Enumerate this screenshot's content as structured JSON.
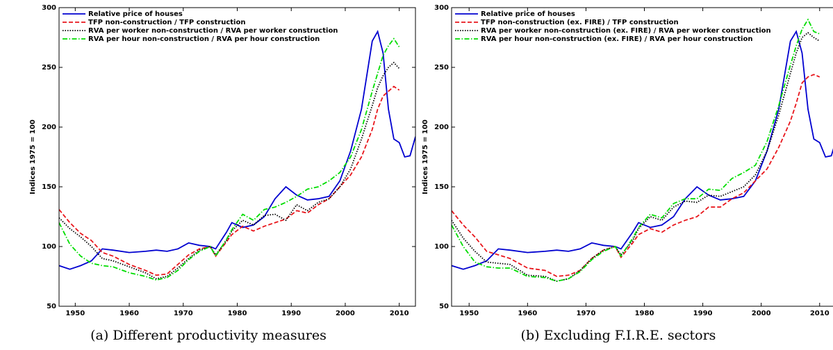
{
  "chart_data": [
    {
      "type": "line",
      "caption": "(a) Different productivity measures",
      "ylabel": "Indices 1975 = 100",
      "x": [
        1947,
        1949,
        1951,
        1953,
        1955,
        1957,
        1960,
        1963,
        1965,
        1967,
        1969,
        1971,
        1973,
        1975,
        1976,
        1978,
        1979,
        1981,
        1983,
        1985,
        1987,
        1989,
        1991,
        1993,
        1995,
        1997,
        1999,
        2001,
        2003,
        2005,
        2006,
        2007,
        2008,
        2009,
        2010,
        2011,
        2012,
        2013
      ],
      "xlim": [
        1947,
        2013
      ],
      "xticks": [
        1950,
        1960,
        1970,
        1980,
        1990,
        2000,
        2010
      ],
      "ylim": [
        50,
        300
      ],
      "yticks": [
        50,
        100,
        150,
        200,
        250,
        300
      ],
      "legend": "upper left",
      "series": [
        {
          "name": "Relative price of houses",
          "color": "#0000d0",
          "style": "solid",
          "values": [
            84,
            81,
            84,
            88,
            98,
            97,
            95,
            96,
            97,
            96,
            98,
            103,
            101,
            100,
            98,
            112,
            120,
            116,
            118,
            125,
            140,
            150,
            143,
            139,
            140,
            142,
            155,
            180,
            215,
            272,
            280,
            262,
            215,
            190,
            187,
            175,
            176,
            192
          ]
        },
        {
          "name": "TFP non-construction / TFP construction",
          "color": "#e8151b",
          "style": "dashed",
          "values": [
            131,
            120,
            111,
            105,
            95,
            92,
            85,
            80,
            76,
            77,
            85,
            93,
            98,
            100,
            92,
            104,
            110,
            117,
            113,
            117,
            120,
            123,
            130,
            128,
            135,
            140,
            150,
            160,
            175,
            198,
            215,
            226,
            230,
            234,
            231,
            null,
            null,
            null
          ]
        },
        {
          "name": "RVA per worker non-construction / RVA per worker construction",
          "color": "#000000",
          "style": "dotted",
          "values": [
            124,
            115,
            108,
            100,
            90,
            88,
            83,
            78,
            73,
            75,
            82,
            90,
            97,
            100,
            93,
            105,
            113,
            122,
            118,
            126,
            127,
            122,
            135,
            130,
            137,
            140,
            150,
            165,
            190,
            218,
            233,
            243,
            250,
            254,
            249,
            null,
            null,
            null
          ]
        },
        {
          "name": "RVA per hour non-construction / RVA per hour construction",
          "color": "#00dd00",
          "style": "dashdot",
          "values": [
            120,
            102,
            92,
            86,
            84,
            83,
            78,
            75,
            72,
            74,
            80,
            89,
            96,
            100,
            92,
            106,
            114,
            127,
            122,
            131,
            133,
            137,
            142,
            148,
            150,
            155,
            162,
            175,
            198,
            230,
            245,
            260,
            268,
            274,
            267,
            null,
            null,
            null
          ]
        }
      ]
    },
    {
      "type": "line",
      "caption": "(b) Excluding F.I.R.E. sectors",
      "ylabel": "Indices 1975 = 100",
      "x": [
        1947,
        1949,
        1951,
        1953,
        1955,
        1957,
        1960,
        1963,
        1965,
        1967,
        1969,
        1971,
        1973,
        1975,
        1976,
        1978,
        1979,
        1981,
        1983,
        1985,
        1987,
        1989,
        1991,
        1993,
        1995,
        1997,
        1999,
        2001,
        2003,
        2005,
        2006,
        2007,
        2008,
        2009,
        2010,
        2011,
        2012,
        2013
      ],
      "xlim": [
        1947,
        2013
      ],
      "xticks": [
        1950,
        1960,
        1970,
        1980,
        1990,
        2000,
        2010
      ],
      "ylim": [
        50,
        300
      ],
      "yticks": [
        50,
        100,
        150,
        200,
        250,
        300
      ],
      "legend": "upper left",
      "series": [
        {
          "name": "Relative price of houses",
          "color": "#0000d0",
          "style": "solid",
          "values": [
            84,
            81,
            84,
            88,
            98,
            97,
            95,
            96,
            97,
            96,
            98,
            103,
            101,
            100,
            98,
            112,
            120,
            116,
            118,
            125,
            140,
            150,
            143,
            139,
            140,
            142,
            155,
            180,
            215,
            272,
            280,
            262,
            215,
            190,
            187,
            175,
            176,
            192
          ]
        },
        {
          "name": "TFP non-construction (ex. FIRE) / TFP construction",
          "color": "#e8151b",
          "style": "dashed",
          "values": [
            130,
            118,
            108,
            96,
            93,
            90,
            82,
            80,
            75,
            76,
            80,
            90,
            97,
            100,
            91,
            103,
            110,
            115,
            112,
            118,
            122,
            125,
            133,
            133,
            140,
            145,
            155,
            165,
            183,
            205,
            220,
            237,
            242,
            244,
            242,
            null,
            null,
            null
          ]
        },
        {
          "name": "RVA per worker non-construction (ex. FIRE) / RVA per worker construction",
          "color": "#000000",
          "style": "dotted",
          "values": [
            122,
            107,
            96,
            87,
            86,
            85,
            76,
            75,
            71,
            73,
            80,
            90,
            97,
            100,
            93,
            105,
            115,
            125,
            122,
            133,
            138,
            137,
            143,
            142,
            146,
            150,
            160,
            180,
            210,
            245,
            262,
            275,
            279,
            275,
            272,
            null,
            null,
            null
          ]
        },
        {
          "name": "RVA per hour non-construction (ex. FIRE) / RVA per hour construction",
          "color": "#00dd00",
          "style": "dashdot",
          "values": [
            118,
            100,
            87,
            83,
            82,
            82,
            75,
            74,
            71,
            73,
            79,
            89,
            96,
            100,
            92,
            107,
            116,
            127,
            124,
            136,
            140,
            140,
            148,
            147,
            157,
            162,
            168,
            188,
            218,
            252,
            268,
            282,
            290,
            280,
            278,
            null,
            null,
            null
          ]
        }
      ]
    }
  ]
}
